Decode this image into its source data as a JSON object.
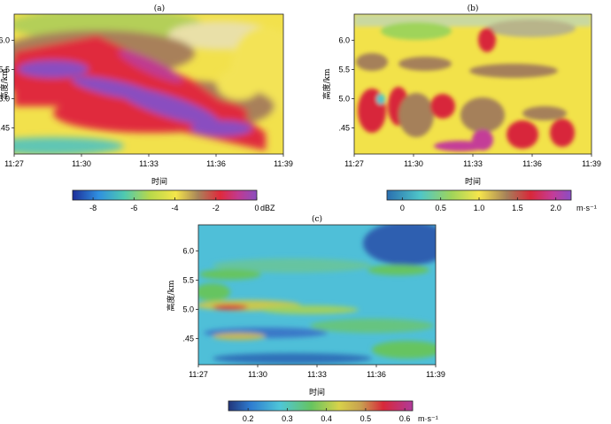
{
  "chart_data": [
    {
      "panel": "(a)",
      "type": "heatmap",
      "ylabel": "高度/km",
      "xlabel": "时间",
      "x_ticks": [
        "11:27",
        "11:30",
        "11:33",
        "11:36",
        "11:39"
      ],
      "y_ticks": [
        "4.5",
        "5.0",
        "5.5",
        "6.0"
      ],
      "colorbar": {
        "ticks": [
          "-8",
          "-6",
          "-4",
          "-2",
          "0"
        ],
        "unit": "dBZ",
        "range": [
          -9,
          0
        ]
      }
    },
    {
      "panel": "(b)",
      "type": "heatmap",
      "ylabel": "高度/km",
      "xlabel": "时间",
      "x_ticks": [
        "11:27",
        "11:30",
        "11:33",
        "11:36",
        "11:39"
      ],
      "y_ticks": [
        "4.5",
        "5.0",
        "5.5",
        "6.0"
      ],
      "colorbar": {
        "ticks": [
          "0",
          "0.5",
          "1.0",
          "1.5",
          "2.0"
        ],
        "unit": "m·s⁻¹",
        "range": [
          -0.2,
          2.2
        ]
      }
    },
    {
      "panel": "(c)",
      "type": "heatmap",
      "ylabel": "高度/km",
      "xlabel": "时间",
      "x_ticks": [
        "11:27",
        "11:30",
        "11:33",
        "11:36",
        "11:39"
      ],
      "y_ticks": [
        "4.5",
        "5.0",
        "5.5",
        "6.0"
      ],
      "colorbar": {
        "ticks": [
          "0.2",
          "0.3",
          "0.4",
          "0.5",
          "0.6"
        ],
        "unit": "m·s⁻¹",
        "range": [
          0.15,
          0.62
        ]
      }
    }
  ]
}
